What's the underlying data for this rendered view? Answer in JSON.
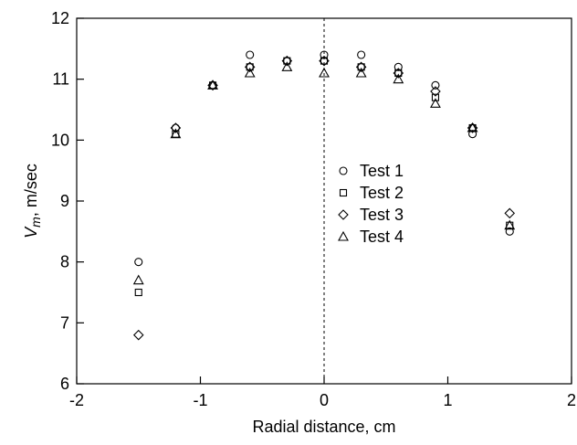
{
  "chart_data": {
    "type": "scatter",
    "xlabel": "Radial distance, cm",
    "ylabel_var": "V",
    "ylabel_sub": "m",
    "ylabel_unit": ", m/sec",
    "xlim": [
      -2,
      2
    ],
    "ylim": [
      6,
      12
    ],
    "xticks": [
      -2,
      -1,
      0,
      1,
      2
    ],
    "yticks": [
      6,
      7,
      8,
      9,
      10,
      11,
      12
    ],
    "grid": false,
    "vertical_reference_line_x": 0,
    "legend_position": "center-right",
    "series": [
      {
        "name": "Test 1",
        "marker": "circle",
        "x": [
          -1.5,
          -1.2,
          -0.9,
          -0.6,
          -0.3,
          0.0,
          0.3,
          0.6,
          0.9,
          1.2,
          1.5
        ],
        "y": [
          8.0,
          10.2,
          10.9,
          11.4,
          11.3,
          11.4,
          11.4,
          11.2,
          10.9,
          10.1,
          8.5
        ]
      },
      {
        "name": "Test 2",
        "marker": "square",
        "x": [
          -1.5,
          -1.2,
          -0.9,
          -0.6,
          -0.3,
          0.0,
          0.3,
          0.6,
          0.9,
          1.2,
          1.5
        ],
        "y": [
          7.5,
          10.1,
          10.9,
          11.2,
          11.3,
          11.3,
          11.2,
          11.1,
          10.7,
          10.2,
          8.6
        ]
      },
      {
        "name": "Test 3",
        "marker": "diamond",
        "x": [
          -1.5,
          -1.2,
          -0.9,
          -0.6,
          -0.3,
          0.0,
          0.3,
          0.6,
          0.9,
          1.2,
          1.5
        ],
        "y": [
          6.8,
          10.2,
          10.9,
          11.2,
          11.3,
          11.3,
          11.2,
          11.1,
          10.8,
          10.2,
          8.8
        ]
      },
      {
        "name": "Test 4",
        "marker": "triangle",
        "x": [
          -1.5,
          -1.2,
          -0.9,
          -0.6,
          -0.3,
          0.0,
          0.3,
          0.6,
          0.9,
          1.2,
          1.5
        ],
        "y": [
          7.7,
          10.1,
          10.9,
          11.1,
          11.2,
          11.1,
          11.1,
          11.0,
          10.6,
          10.2,
          8.6
        ]
      }
    ]
  }
}
